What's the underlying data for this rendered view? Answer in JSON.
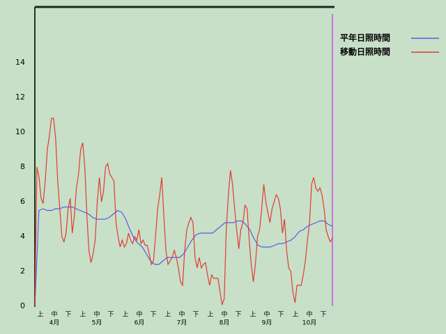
{
  "chart_data": {
    "type": "line",
    "ylim": [
      0,
      17.2
    ],
    "yticks": [
      0,
      2,
      4,
      6,
      8,
      10,
      12,
      14
    ],
    "x_labels": [
      "上",
      "中",
      "下",
      "上",
      "中",
      "下",
      "上",
      "中",
      "下",
      "上",
      "中",
      "下",
      "上",
      "中",
      "下",
      "上",
      "中",
      "下",
      "上",
      "中",
      "下"
    ],
    "months": [
      "4月",
      "5月",
      "6月",
      "7月",
      "8月",
      "9月",
      "10月"
    ],
    "legend": "upper right",
    "series": [
      {
        "name": "平年日照時間",
        "color": "#5a5ae6",
        "values": [
          0,
          5.5,
          5.6,
          5.5,
          5.5,
          5.6,
          5.6,
          5.7,
          5.7,
          5.7,
          5.6,
          5.5,
          5.4,
          5.3,
          5.1,
          5.0,
          5.0,
          5.0,
          5.1,
          5.3,
          5.5,
          5.4,
          5.0,
          4.4,
          3.9,
          3.6,
          3.4,
          3.0,
          2.6,
          2.4,
          2.4,
          2.6,
          2.8,
          2.8,
          2.8,
          2.8,
          3.0,
          3.4,
          3.8,
          4.1,
          4.2,
          4.2,
          4.2,
          4.2,
          4.4,
          4.6,
          4.8,
          4.8,
          4.8,
          4.9,
          4.9,
          4.7,
          4.4,
          3.9,
          3.5,
          3.4,
          3.4,
          3.4,
          3.5,
          3.6,
          3.6,
          3.7,
          3.8,
          4.0,
          4.3,
          4.4,
          4.6,
          4.7,
          4.8,
          4.9,
          4.9,
          4.7,
          4.6
        ]
      },
      {
        "name": "移動日照時間",
        "color": "#e03a32",
        "values": [
          0,
          8.0,
          7.4,
          6.2,
          5.9,
          7.2,
          9.0,
          9.8,
          10.8,
          10.8,
          9.6,
          7.2,
          5.6,
          4.0,
          3.7,
          4.2,
          5.6,
          6.2,
          4.2,
          5.2,
          6.8,
          7.6,
          9.0,
          9.4,
          8.0,
          5.2,
          3.2,
          2.5,
          3.0,
          3.8,
          6.0,
          7.4,
          6.0,
          6.6,
          8.0,
          8.2,
          7.6,
          7.4,
          7.2,
          4.8,
          4.0,
          3.4,
          3.8,
          3.4,
          3.6,
          4.2,
          3.8,
          3.6,
          4.0,
          3.8,
          4.4,
          3.6,
          3.8,
          3.5,
          3.5,
          3.0,
          2.4,
          2.6,
          4.0,
          5.6,
          6.4,
          7.4,
          5.2,
          3.2,
          2.4,
          2.6,
          2.8,
          3.2,
          2.8,
          2.2,
          1.4,
          1.2,
          3.2,
          4.4,
          4.8,
          5.1,
          4.8,
          2.8,
          2.2,
          2.8,
          2.2,
          2.4,
          2.5,
          1.8,
          1.2,
          1.8,
          1.6,
          1.6,
          1.6,
          0.8,
          0.1,
          0.4,
          4.4,
          6.4,
          7.8,
          7.0,
          5.6,
          4.4,
          3.3,
          4.4,
          4.8,
          5.8,
          5.6,
          3.8,
          2.4,
          1.4,
          2.4,
          4.0,
          4.4,
          5.6,
          7.0,
          6.0,
          5.4,
          4.8,
          5.6,
          6.0,
          6.4,
          6.2,
          5.6,
          4.2,
          5.0,
          3.2,
          2.2,
          2.0,
          0.8,
          0.2,
          1.2,
          1.2,
          1.2,
          1.8,
          2.6,
          3.8,
          4.8,
          7.0,
          7.4,
          6.8,
          6.6,
          6.8,
          6.4,
          5.6,
          4.4,
          4.0,
          3.7,
          3.9
        ]
      }
    ]
  }
}
